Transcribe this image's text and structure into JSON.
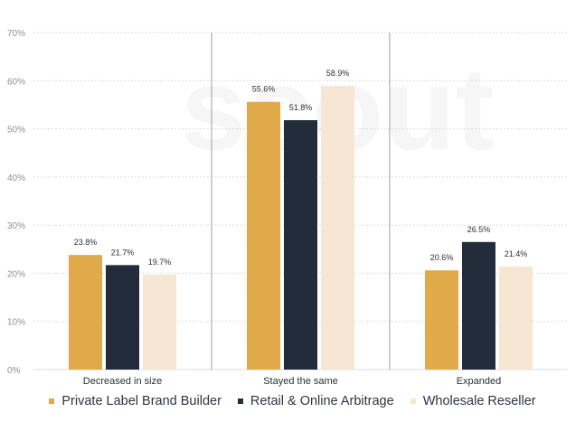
{
  "colors": {
    "private_label": "#E0A94A",
    "retail_online": "#232C3B",
    "wholesale": "#F6E6D3",
    "axis_text": "#8a8f98",
    "label_text": "#2b2f36",
    "grid": "#d9dbe0",
    "divider": "#9a9ea6"
  },
  "watermark": "scout",
  "chart_data": {
    "type": "bar",
    "categories": [
      "Decreased in size",
      "Stayed the same",
      "Expanded"
    ],
    "series": [
      {
        "name": "Private Label Brand Builder",
        "values": [
          23.8,
          55.6,
          20.6
        ],
        "labels": [
          "23.8%",
          "55.6%",
          "20.6%"
        ],
        "color": "#E0A94A"
      },
      {
        "name": "Retail & Online Arbitrage",
        "values": [
          21.7,
          51.8,
          26.5
        ],
        "labels": [
          "21.7%",
          "51.8%",
          "26.5%"
        ],
        "color": "#232C3B"
      },
      {
        "name": "Wholesale Reseller",
        "values": [
          19.7,
          58.9,
          21.4
        ],
        "labels": [
          "19.7%",
          "58.9%",
          "21.4%"
        ],
        "color": "#F6E6D3"
      }
    ],
    "ylim": [
      0,
      70
    ],
    "yticks": [
      "0%",
      "10%",
      "20%",
      "30%",
      "40%",
      "50%",
      "60%",
      "70%"
    ],
    "grid": true,
    "legend_position": "bottom"
  }
}
